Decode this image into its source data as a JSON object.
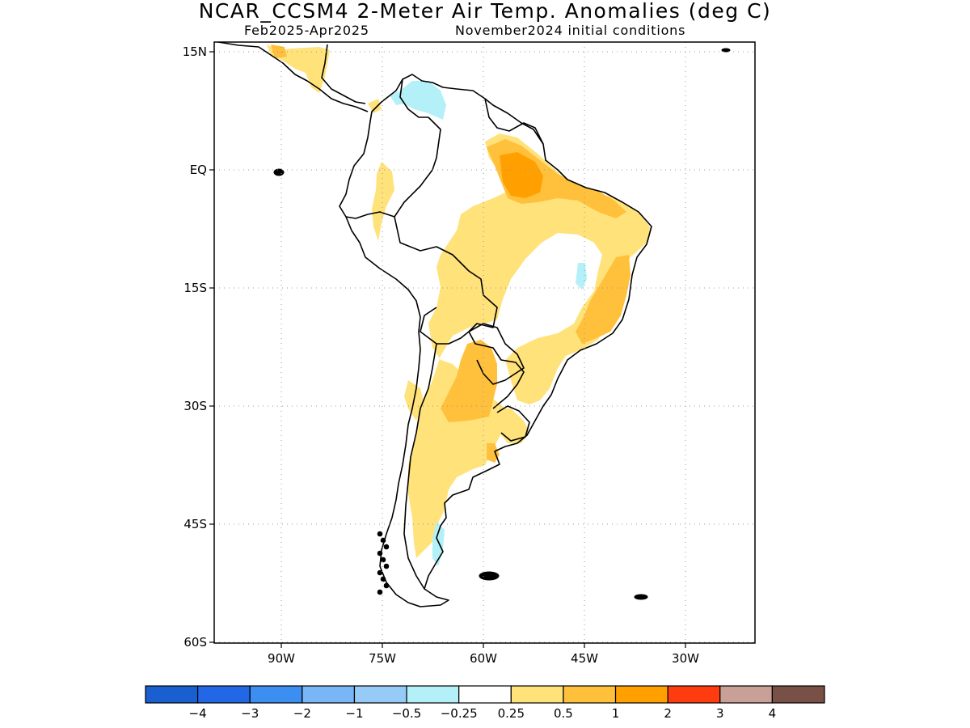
{
  "header": {
    "title": "NCAR_CCSM4 2-Meter Air Temp. Anomalies (deg C)",
    "period": "Feb2025-Apr2025",
    "init": "November2024 initial conditions"
  },
  "map": {
    "region": "South America",
    "lon_range": [
      -103,
      -20
    ],
    "lat_range": [
      -60,
      15
    ],
    "lat_ticks": [
      "15N",
      "EQ",
      "15S",
      "30S",
      "45S",
      "60S"
    ],
    "lon_ticks": [
      "90W",
      "75W",
      "60W",
      "45W",
      "30W"
    ],
    "gridlines": "dotted"
  },
  "colorbar": {
    "labels": [
      "-4",
      "-3",
      "-2",
      "-1",
      "-0.5",
      "-0.25",
      "0.25",
      "0.5",
      "1",
      "2",
      "3",
      "4"
    ],
    "colors": [
      "#1a5fd0",
      "#2268e6",
      "#3c8ef0",
      "#78b6f5",
      "#96cbf7",
      "#b4f0f8",
      "#ffffff",
      "#ffe27a",
      "#ffc03c",
      "#ffa000",
      "#ff3c0f",
      "#c8a096",
      "#785046"
    ]
  }
}
